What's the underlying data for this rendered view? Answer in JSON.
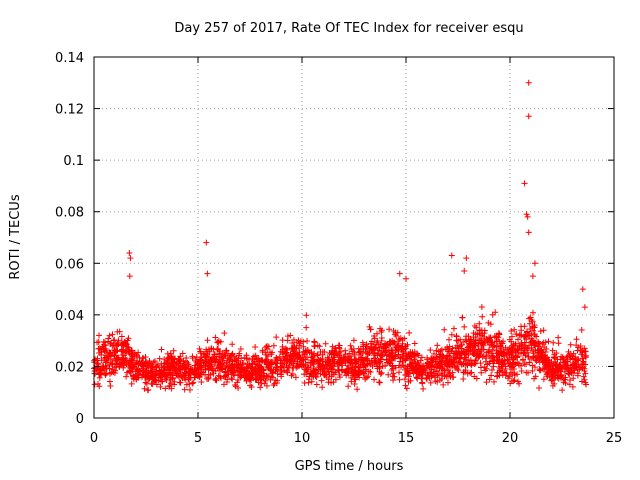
{
  "chart_data": {
    "type": "scatter",
    "title": "Day 257 of 2017, Rate Of TEC Index for receiver esqu",
    "xlabel": "GPS time / hours",
    "ylabel": "ROTI / TECUs",
    "xlim": [
      0,
      25
    ],
    "ylim": [
      0,
      0.14
    ],
    "xticks": [
      0,
      5,
      10,
      15,
      20,
      25
    ],
    "xtick_labels": [
      "0",
      "5",
      "10",
      "15",
      "20",
      "25"
    ],
    "yticks": [
      0,
      0.02,
      0.04,
      0.06,
      0.08,
      0.1,
      0.12,
      0.14
    ],
    "ytick_labels": [
      "0",
      "0.02",
      "0.04",
      "0.06",
      "0.08",
      "0.1",
      "0.12",
      "0.14"
    ],
    "grid": true,
    "marker": "+",
    "marker_color": "#ff0000",
    "data_coverage_hours": [
      0,
      23.7
    ],
    "series": [
      {
        "name": "ROTI",
        "envelope_x": [
          0,
          0.5,
          1,
          1.5,
          2,
          2.5,
          3,
          3.5,
          4,
          4.5,
          5,
          5.5,
          6,
          6.5,
          7,
          7.5,
          8,
          8.5,
          9,
          9.5,
          10,
          10.5,
          11,
          11.5,
          12,
          12.5,
          13,
          13.5,
          14,
          14.5,
          15,
          15.5,
          16,
          16.5,
          17,
          17.5,
          18,
          18.5,
          19,
          19.5,
          20,
          20.5,
          21,
          21.5,
          22,
          22.5,
          23,
          23.5
        ],
        "envelope_center": [
          0.019,
          0.022,
          0.024,
          0.025,
          0.02,
          0.018,
          0.017,
          0.018,
          0.019,
          0.018,
          0.019,
          0.021,
          0.022,
          0.02,
          0.019,
          0.018,
          0.019,
          0.02,
          0.022,
          0.024,
          0.023,
          0.022,
          0.021,
          0.022,
          0.021,
          0.02,
          0.022,
          0.023,
          0.024,
          0.025,
          0.022,
          0.02,
          0.019,
          0.02,
          0.022,
          0.024,
          0.026,
          0.027,
          0.025,
          0.023,
          0.022,
          0.025,
          0.03,
          0.024,
          0.02,
          0.018,
          0.02,
          0.022
        ],
        "envelope_spread": [
          0.006,
          0.007,
          0.008,
          0.009,
          0.006,
          0.005,
          0.005,
          0.005,
          0.006,
          0.005,
          0.005,
          0.007,
          0.007,
          0.006,
          0.005,
          0.005,
          0.005,
          0.006,
          0.007,
          0.008,
          0.007,
          0.007,
          0.006,
          0.007,
          0.006,
          0.006,
          0.007,
          0.007,
          0.008,
          0.008,
          0.007,
          0.006,
          0.006,
          0.006,
          0.007,
          0.008,
          0.009,
          0.009,
          0.008,
          0.007,
          0.007,
          0.008,
          0.01,
          0.008,
          0.006,
          0.005,
          0.006,
          0.007
        ],
        "notable_points": [
          {
            "x": 1.7,
            "y": 0.064
          },
          {
            "x": 1.75,
            "y": 0.062
          },
          {
            "x": 1.72,
            "y": 0.055
          },
          {
            "x": 5.4,
            "y": 0.068
          },
          {
            "x": 5.45,
            "y": 0.056
          },
          {
            "x": 14.7,
            "y": 0.056
          },
          {
            "x": 15.0,
            "y": 0.054
          },
          {
            "x": 17.2,
            "y": 0.063
          },
          {
            "x": 17.9,
            "y": 0.062
          },
          {
            "x": 17.8,
            "y": 0.057
          },
          {
            "x": 20.7,
            "y": 0.091
          },
          {
            "x": 20.8,
            "y": 0.079
          },
          {
            "x": 20.85,
            "y": 0.078
          },
          {
            "x": 20.9,
            "y": 0.072
          },
          {
            "x": 20.9,
            "y": 0.117
          },
          {
            "x": 20.9,
            "y": 0.13
          },
          {
            "x": 21.2,
            "y": 0.06
          },
          {
            "x": 21.1,
            "y": 0.055
          },
          {
            "x": 23.5,
            "y": 0.05
          },
          {
            "x": 23.6,
            "y": 0.043
          }
        ]
      }
    ]
  }
}
